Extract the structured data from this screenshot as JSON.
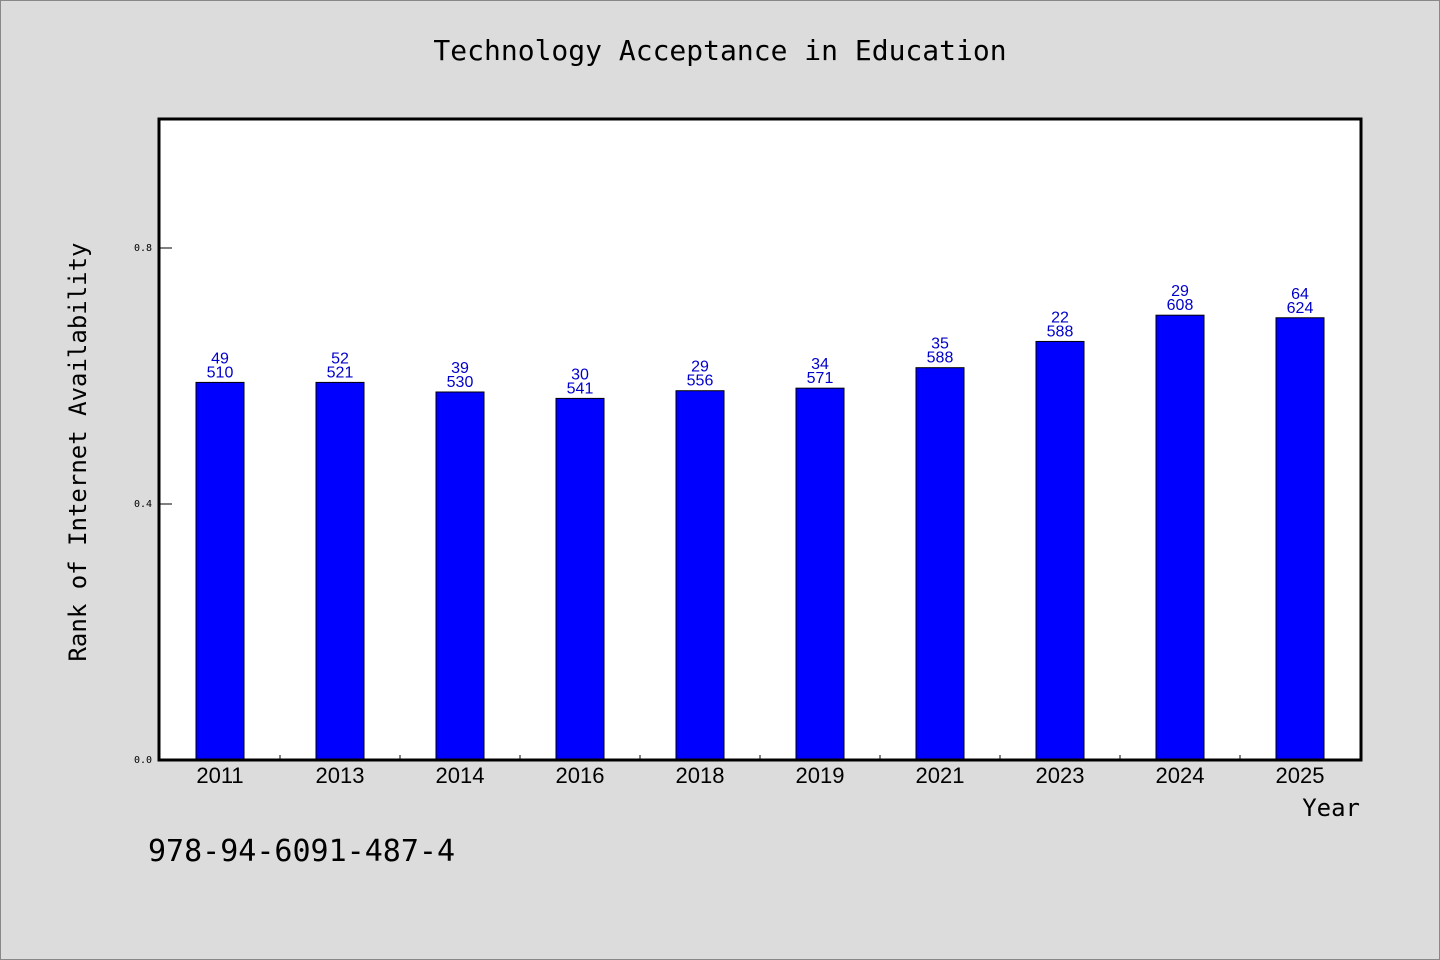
{
  "chart_data": {
    "type": "bar",
    "title": "Technology Acceptance in Education",
    "xlabel": "Year",
    "ylabel": "Rank of Internet Availability",
    "categories": [
      "2011",
      "2013",
      "2014",
      "2016",
      "2018",
      "2019",
      "2021",
      "2023",
      "2024",
      "2025"
    ],
    "values": [
      0.59,
      0.59,
      0.575,
      0.565,
      0.577,
      0.581,
      0.613,
      0.654,
      0.695,
      0.691
    ],
    "labels_top": [
      "49",
      "52",
      "39",
      "30",
      "29",
      "34",
      "35",
      "22",
      "29",
      "64"
    ],
    "labels_bottom": [
      "510",
      "521",
      "530",
      "541",
      "556",
      "571",
      "588",
      "588",
      "608",
      "624"
    ],
    "ylim": [
      0,
      1.0
    ],
    "yticks": [
      0.0,
      0.4,
      0.8
    ],
    "ytick_labels": [
      "0.0",
      "0.4",
      "0.8"
    ],
    "bar_color": "#0000ff",
    "label_color": "#0000cc",
    "grid": false,
    "legend": "none"
  },
  "footer": {
    "isbn": "978-94-6091-487-4"
  }
}
